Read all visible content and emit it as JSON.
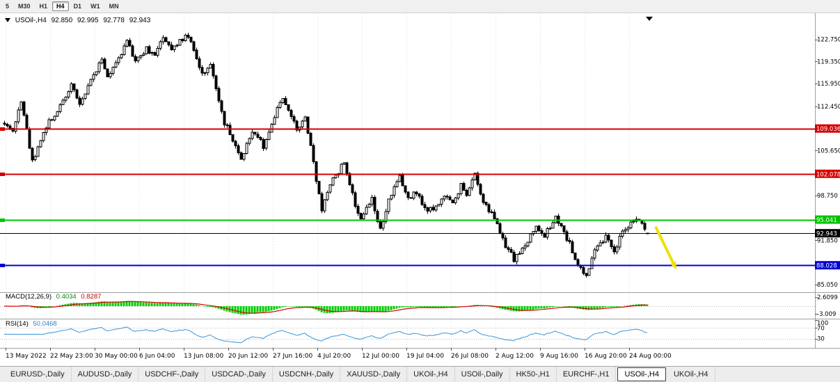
{
  "toolbar": {
    "timeframes": [
      "5",
      "M30",
      "H1",
      "H4",
      "D1",
      "W1",
      "MN"
    ],
    "active": "H4"
  },
  "chart_header": {
    "symbol_period": "USOil-,H4",
    "open": "92.850",
    "high": "92.995",
    "low": "92.778",
    "close": "92.943"
  },
  "price_axis": {
    "labels": [
      {
        "text": "122.750",
        "price": 122.75
      },
      {
        "text": "119.350",
        "price": 119.35
      },
      {
        "text": "115.950",
        "price": 115.95
      },
      {
        "text": "112.450",
        "price": 112.45
      },
      {
        "text": "105.650",
        "price": 105.65
      },
      {
        "text": "98.750",
        "price": 98.75
      },
      {
        "text": "91.850",
        "price": 91.85
      },
      {
        "text": "85.050",
        "price": 85.05
      }
    ],
    "badges": [
      {
        "text": "109.036",
        "price": 109.036,
        "color": "#D60000"
      },
      {
        "text": "102.078",
        "price": 102.078,
        "color": "#D60000"
      },
      {
        "text": "95.041",
        "price": 95.041,
        "color": "#00C400"
      },
      {
        "text": "92.943",
        "price": 92.943,
        "color": "#000000"
      },
      {
        "text": "88.028",
        "price": 88.028,
        "color": "#0000D2"
      }
    ]
  },
  "time_axis": {
    "labels": [
      "13 May 2022",
      "22 May 23:00",
      "30 May 00:00",
      "6 Jun 04:00",
      "13 Jun 08:00",
      "20 Jun 12:00",
      "27 Jun 16:00",
      "4 Jul 20:00",
      "12 Jul 00:00",
      "19 Jul 04:00",
      "26 Jul 08:00",
      "2 Aug 12:00",
      "9 Aug 16:00",
      "16 Aug 20:00",
      "24 Aug 00:00"
    ]
  },
  "indicators": {
    "macd": {
      "name": "MACD(12,26,9)",
      "value_main": "0.4034",
      "value_signal": "0.8287",
      "axis_labels": [
        {
          "text": "2.6099",
          "value": 2.6099
        },
        {
          "text": "-3.009",
          "value": -3.009
        }
      ],
      "histogram_color": "#00D000",
      "signal_color": "#DC0000"
    },
    "rsi": {
      "name": "RSI(14)",
      "value": "50.0468",
      "axis_labels": [
        {
          "text": "100",
          "value": 100
        },
        {
          "text": "70",
          "value": 70
        },
        {
          "text": "30",
          "value": 30
        }
      ],
      "levels": [
        70,
        30
      ],
      "line_color": "#4A9EDB"
    }
  },
  "tabs": {
    "items": [
      "EURUSD-,Daily",
      "AUDUSD-,Daily",
      "USDCHF-,Daily",
      "USDCAD-,Daily",
      "USDCNH-,Daily",
      "XAUUSD-,Daily",
      "UKOil-,H4",
      "USOil-,Daily",
      "HK50-,H1",
      "EURCHF-,H1",
      "USOil-,H4",
      "UKOil-,H4"
    ],
    "active_index": 10
  },
  "chart_data": {
    "type": "candlestick",
    "title": "USOil-,H4",
    "symbol": "USOil-",
    "timeframe": "H4",
    "current_ohlc": {
      "open": 92.85,
      "high": 92.995,
      "low": 92.778,
      "close": 92.943
    },
    "bars_visible": 232,
    "visible_price_range": [
      85.05,
      123.8
    ],
    "horizontal_levels": [
      {
        "price": 109.036,
        "color": "#D60000",
        "width": 2
      },
      {
        "price": 102.078,
        "color": "#D60000",
        "width": 2
      },
      {
        "price": 95.041,
        "color": "#00C400",
        "width": 2
      },
      {
        "price": 92.943,
        "color": "#000000",
        "width": 1
      },
      {
        "price": 88.028,
        "color": "#0000D2",
        "width": 2
      }
    ],
    "price_path_anchors": [
      [
        0,
        110.0
      ],
      [
        3,
        108.5
      ],
      [
        6,
        113.5
      ],
      [
        10,
        104.0
      ],
      [
        13,
        107.5
      ],
      [
        16,
        110.0
      ],
      [
        20,
        112.5
      ],
      [
        24,
        115.8
      ],
      [
        27,
        112.5
      ],
      [
        31,
        116.5
      ],
      [
        35,
        119.8
      ],
      [
        37,
        116.8
      ],
      [
        41,
        120.0
      ],
      [
        44,
        122.3
      ],
      [
        47,
        119.6
      ],
      [
        51,
        121.3
      ],
      [
        54,
        120.0
      ],
      [
        57,
        123.4
      ],
      [
        60,
        121.2
      ],
      [
        63,
        122.6
      ],
      [
        66,
        123.2
      ],
      [
        71,
        117.4
      ],
      [
        74,
        118.8
      ],
      [
        79,
        110.0
      ],
      [
        85,
        104.5
      ],
      [
        89,
        108.8
      ],
      [
        93,
        106.3
      ],
      [
        98,
        111.8
      ],
      [
        100,
        114.0
      ],
      [
        105,
        108.8
      ],
      [
        108,
        111.0
      ],
      [
        112,
        101.0
      ],
      [
        114,
        96.8
      ],
      [
        117,
        100.5
      ],
      [
        122,
        103.8
      ],
      [
        126,
        97.5
      ],
      [
        128,
        95.3
      ],
      [
        132,
        98.3
      ],
      [
        135,
        93.5
      ],
      [
        138,
        97.8
      ],
      [
        142,
        101.5
      ],
      [
        145,
        98.5
      ],
      [
        148,
        99.3
      ],
      [
        152,
        96.2
      ],
      [
        156,
        97.5
      ],
      [
        158,
        98.8
      ],
      [
        161,
        97.3
      ],
      [
        164,
        100.2
      ],
      [
        166,
        98.6
      ],
      [
        169,
        102.0
      ],
      [
        172,
        97.6
      ],
      [
        176,
        95.2
      ],
      [
        179,
        91.8
      ],
      [
        183,
        89.0
      ],
      [
        186,
        90.3
      ],
      [
        191,
        94.2
      ],
      [
        194,
        92.6
      ],
      [
        198,
        95.2
      ],
      [
        202,
        92.2
      ],
      [
        206,
        88.2
      ],
      [
        209,
        86.3
      ],
      [
        212,
        90.8
      ],
      [
        216,
        92.4
      ],
      [
        219,
        89.8
      ],
      [
        222,
        93.3
      ],
      [
        227,
        95.1
      ],
      [
        230,
        94.0
      ],
      [
        231,
        92.9
      ]
    ],
    "indicator_values": {
      "macd_main": 0.4034,
      "macd_signal": 0.8287,
      "macd_axis_max": 2.6099,
      "macd_axis_min": -3.009,
      "rsi": 50.0468
    },
    "annotations": [
      {
        "type": "arrow",
        "color": "#EDE10A",
        "from": {
          "bar": 234,
          "price": 93.95
        },
        "to": {
          "bar": 241.5,
          "price": 87.35
        }
      }
    ],
    "generator": {
      "seed": 1337,
      "close_noise": 0.9,
      "wick_noise": 0.42
    }
  }
}
